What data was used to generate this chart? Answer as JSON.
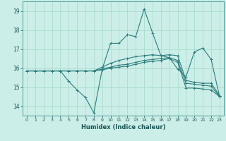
{
  "xlabel": "Humidex (Indice chaleur)",
  "ylabel": "",
  "bg_color": "#cceee8",
  "grid_color": "#aaddcc",
  "line_color": "#2d7d7d",
  "xlim": [
    -0.5,
    23.5
  ],
  "ylim": [
    13.5,
    19.5
  ],
  "yticks": [
    14,
    15,
    16,
    17,
    18,
    19
  ],
  "xticks": [
    0,
    1,
    2,
    3,
    4,
    5,
    6,
    7,
    8,
    9,
    10,
    11,
    12,
    13,
    14,
    15,
    16,
    17,
    18,
    19,
    20,
    21,
    22,
    23
  ],
  "series": [
    [
      15.85,
      15.85,
      15.85,
      15.85,
      15.85,
      15.3,
      14.85,
      14.45,
      13.65,
      15.95,
      17.3,
      17.3,
      17.75,
      17.65,
      19.1,
      17.85,
      16.65,
      16.55,
      15.95,
      15.55,
      16.85,
      17.05,
      16.45,
      14.5
    ],
    [
      15.85,
      15.85,
      15.85,
      15.85,
      15.85,
      15.85,
      15.85,
      15.85,
      15.85,
      16.05,
      16.25,
      16.4,
      16.5,
      16.6,
      16.65,
      16.7,
      16.65,
      16.7,
      16.65,
      15.35,
      15.25,
      15.2,
      15.2,
      14.55
    ],
    [
      15.85,
      15.85,
      15.85,
      15.85,
      15.85,
      15.85,
      15.85,
      15.85,
      15.85,
      15.95,
      16.05,
      16.15,
      16.2,
      16.3,
      16.4,
      16.45,
      16.5,
      16.55,
      16.4,
      15.2,
      15.15,
      15.1,
      15.05,
      14.5
    ],
    [
      15.85,
      15.85,
      15.85,
      15.85,
      15.85,
      15.85,
      15.85,
      15.85,
      15.85,
      15.9,
      16.0,
      16.05,
      16.1,
      16.2,
      16.3,
      16.35,
      16.4,
      16.5,
      16.3,
      14.95,
      14.95,
      14.9,
      14.85,
      14.5
    ]
  ]
}
